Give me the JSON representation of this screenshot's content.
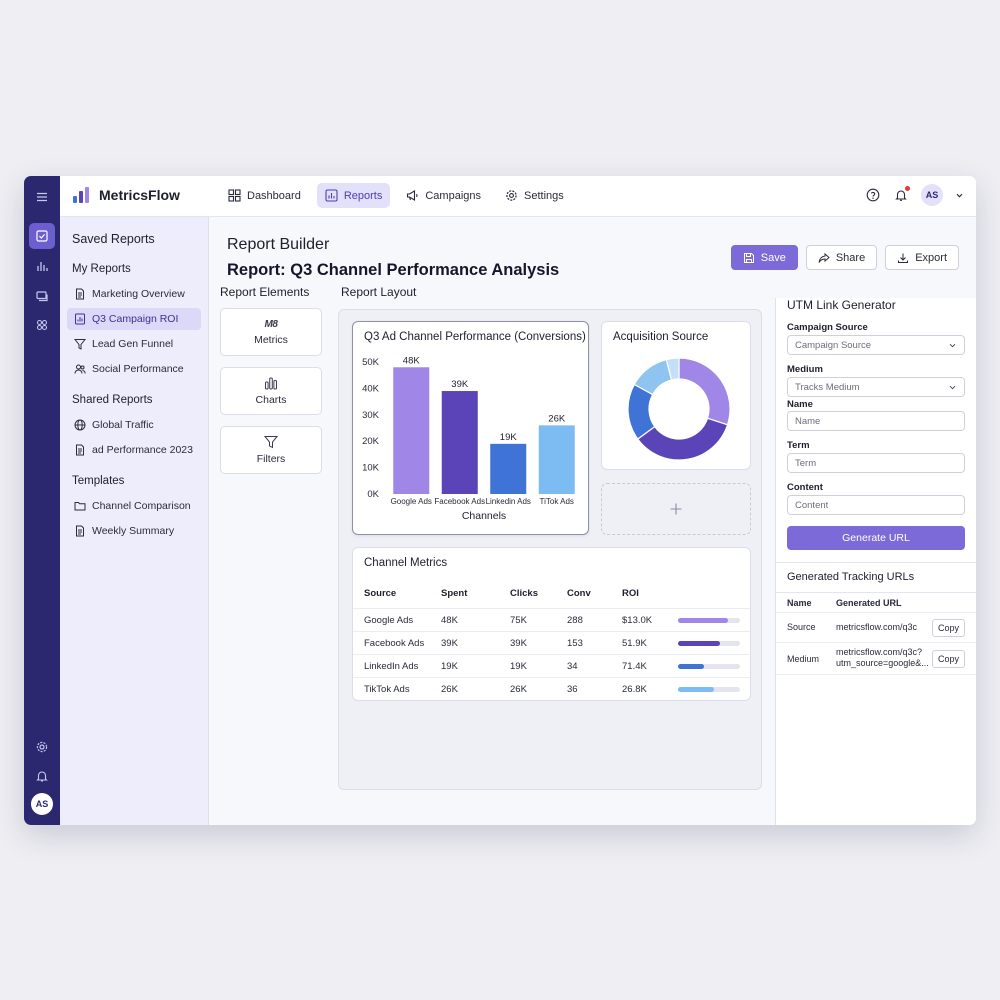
{
  "app": {
    "name": "MetricsFlow",
    "user_initials": "AS"
  },
  "nav": [
    {
      "label": "Dashboard",
      "icon": "grid-icon"
    },
    {
      "label": "Reports",
      "icon": "bar-chart-icon",
      "active": true
    },
    {
      "label": "Campaigns",
      "icon": "megaphone-icon"
    },
    {
      "label": "Settings",
      "icon": "gear-icon"
    }
  ],
  "sidebar": {
    "title": "Saved Reports",
    "my_reports": {
      "heading": "My Reports",
      "items": [
        "Marketing Overview",
        "Q3 Campaign ROI",
        "Lead Gen Funnel",
        "Social Performance"
      ]
    },
    "shared_reports": {
      "heading": "Shared Reports",
      "items": [
        "Global Traffic",
        "ad Performance 2023"
      ]
    },
    "templates": {
      "heading": "Templates",
      "items": [
        "Channel Comparison",
        "Weekly Summary"
      ]
    }
  },
  "header": {
    "eyebrow": "Report Builder",
    "title": "Report: Q3 Channel Performance Analysis",
    "save": "Save",
    "share": "Share",
    "export": "Export"
  },
  "elements": {
    "title": "Report Elements",
    "items": [
      "Metrics",
      "Charts",
      "Filters"
    ],
    "metrics_glyph": "M8"
  },
  "layout_title": "Report Layout",
  "chart_data": [
    {
      "type": "bar",
      "title": "Q3 Ad Channel Performance (Conversions)",
      "categories": [
        "Google Ads",
        "Facebook Ads",
        "Linkedin Ads",
        "TiTok Ads"
      ],
      "values": [
        48000,
        39000,
        19000,
        26000
      ],
      "data_labels": [
        "48K",
        "39K",
        "19K",
        "26K"
      ],
      "colors": [
        "#a086e6",
        "#5a44b8",
        "#3f74d6",
        "#7cbcf3"
      ],
      "xlabel": "Channels",
      "ylabel": "",
      "ylim": [
        0,
        50000
      ],
      "yticks": [
        "0K",
        "10K",
        "20K",
        "30K",
        "40K",
        "50K"
      ]
    },
    {
      "type": "pie",
      "title": "Acquisition Source",
      "values": [
        30,
        35,
        18,
        13,
        4
      ],
      "colors": [
        "#a086e6",
        "#5a44b8",
        "#3f74d6",
        "#8fc4f0",
        "#c4e0f9"
      ]
    }
  ],
  "metrics_table": {
    "title": "Channel Metrics",
    "columns": [
      "Source",
      "Spent",
      "Clicks",
      "Conv",
      "ROI"
    ],
    "rows": [
      {
        "source": "Google Ads",
        "spent": "48K",
        "clicks": "75K",
        "conv": "288",
        "roi": "$13.0K",
        "bar": 0.8,
        "color": "#a086e6"
      },
      {
        "source": "Facebook Ads",
        "spent": "39K",
        "clicks": "39K",
        "conv": "153",
        "roi": "51.9K",
        "bar": 0.68,
        "color": "#5a44b8"
      },
      {
        "source": "LinkedIn Ads",
        "spent": "19K",
        "clicks": "19K",
        "conv": "34",
        "roi": "71.4K",
        "bar": 0.42,
        "color": "#3f74d6"
      },
      {
        "source": "TikTok Ads",
        "spent": "26K",
        "clicks": "26K",
        "conv": "36",
        "roi": "26.8K",
        "bar": 0.58,
        "color": "#7cbcf3"
      }
    ]
  },
  "utm": {
    "title": "UTM Link Generator",
    "fields": [
      {
        "label": "Campaign Source",
        "value": "Campaign Source",
        "dropdown": true
      },
      {
        "label": "Medium",
        "value": "Tracks Medium",
        "dropdown": true
      },
      {
        "label": "Name",
        "placeholder": "Name"
      },
      {
        "label": "Term",
        "placeholder": "Term"
      },
      {
        "label": "Content",
        "placeholder": "Content"
      }
    ],
    "generate": "Generate URL",
    "generated_title": "Generated Tracking URLs",
    "columns": [
      "Name",
      "Generated URL"
    ],
    "rows": [
      {
        "name": "Source",
        "url_line1": "metricsflow.com/q3c",
        "url_line2": "",
        "copy": "Copy"
      },
      {
        "name": "Medium",
        "url_line1": "metricsflow.com/q3c?",
        "url_line2": "utm_source=google&...",
        "copy": "Copy"
      }
    ]
  }
}
